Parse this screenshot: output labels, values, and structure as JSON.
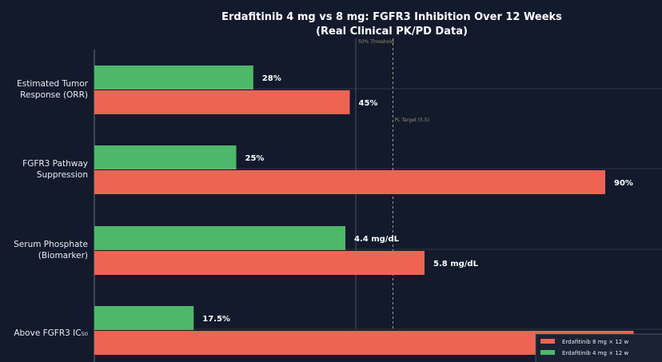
{
  "chart_data": {
    "type": "bar",
    "orientation": "horizontal",
    "title": "Erdafitinib 4 mg vs 8 mg: FGFR3 Inhibition Over 12 Weeks",
    "subtitle": "(Real Clinical PK/PD Data)",
    "categories": [
      "Estimated Tumor\nResponse (ORR)",
      "FGFR3 Pathway\nSuppression",
      "Serum Phosphate\n(Biomarker)",
      "Above FGFR3 IC₅₀"
    ],
    "series": [
      {
        "name": "Erdafitinib 4 mg × 12 w",
        "color": "#4db86a",
        "values": [
          28,
          25,
          4.4,
          17.5
        ],
        "labels": [
          "28%",
          "25%",
          "4.4 mg/dL",
          "17.5%"
        ]
      },
      {
        "name": "Erdafitinib 8 mg × 12 w",
        "color": "#ee6452",
        "values": [
          45,
          90,
          5.8,
          95
        ],
        "labels": [
          "45%",
          "90%",
          "5.8 mg/dL",
          ""
        ]
      }
    ],
    "xlim": [
      0,
      100
    ],
    "reference_lines": [
      {
        "value": 50,
        "label": "50% Threshold",
        "style": "solid"
      },
      {
        "value": 55,
        "label": "PL Target (5.5)",
        "style": "dashed"
      }
    ],
    "legend": "bottom-right",
    "grid": false
  }
}
